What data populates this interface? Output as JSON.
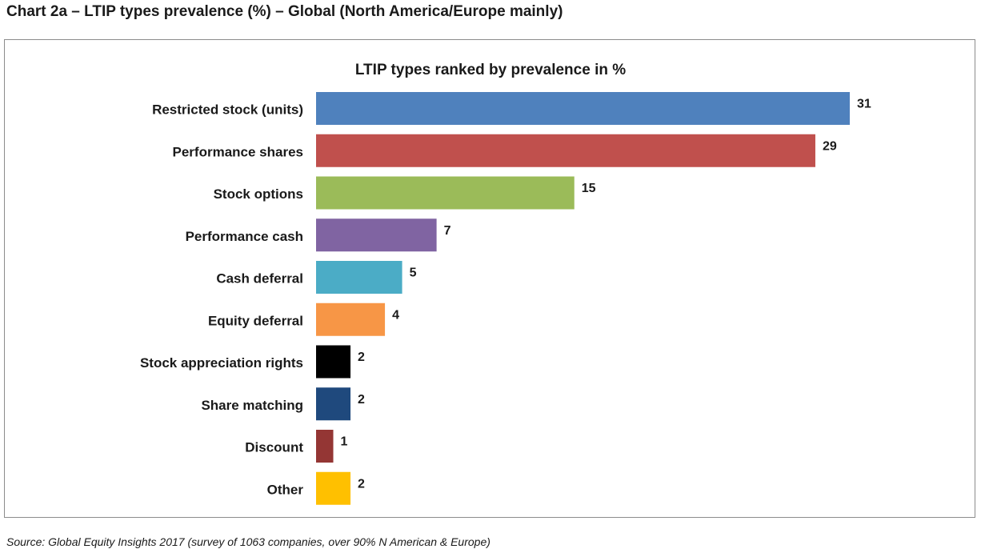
{
  "heading": "Chart 2a – LTIP types prevalence (%) – Global (North America/Europe mainly)",
  "source": "Source: Global Equity Insights 2017 (survey of 1063 companies, over 90% N American & Europe)",
  "chart_data": {
    "type": "bar",
    "orientation": "horizontal",
    "title": "LTIP types ranked by prevalence in %",
    "xlabel": "",
    "ylabel": "",
    "xlim": [
      0,
      31
    ],
    "grid": false,
    "legend": "none",
    "categories": [
      "Restricted stock (units)",
      "Performance shares",
      "Stock options",
      "Performance cash",
      "Cash deferral",
      "Equity deferral",
      "Stock appreciation rights",
      "Share matching",
      "Discount",
      "Other"
    ],
    "values": [
      31,
      29,
      15,
      7,
      5,
      4,
      2,
      2,
      1,
      2
    ],
    "colors": [
      "#4f81bd",
      "#c0504d",
      "#9bbb59",
      "#8064a2",
      "#4bacc6",
      "#f79646",
      "#000000",
      "#1f497d",
      "#943634",
      "#ffc000"
    ]
  }
}
